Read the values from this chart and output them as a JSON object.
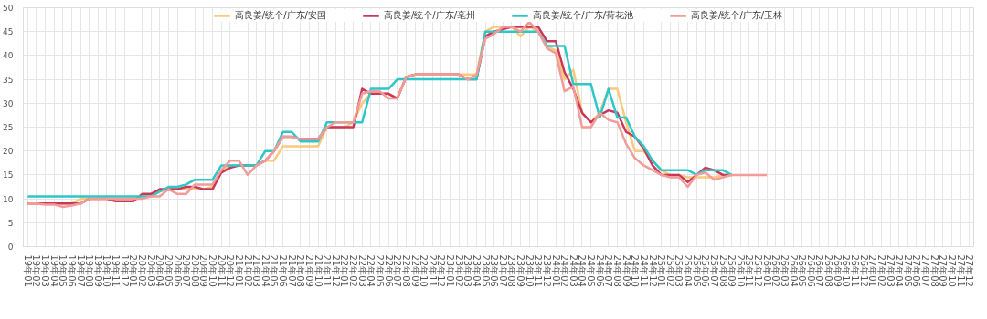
{
  "chart_data": {
    "type": "line",
    "categories": [
      "19年01",
      "19年02",
      "19年03",
      "19年04",
      "19年05",
      "19年06",
      "19年07",
      "19年08",
      "19年09",
      "19年10",
      "19年11",
      "19年12",
      "20年01",
      "20年02",
      "20年03",
      "20年04",
      "20年05",
      "20年06",
      "20年07",
      "20年08",
      "20年09",
      "20年10",
      "20年11",
      "20年12",
      "21年01",
      "21年02",
      "21年03",
      "21年04",
      "21年05",
      "21年06",
      "21年07",
      "21年08",
      "21年09",
      "21年10",
      "21年11",
      "21年12",
      "22年01",
      "22年02",
      "22年03",
      "22年04",
      "22年05",
      "22年06",
      "22年07",
      "22年08",
      "22年09",
      "22年10",
      "22年11",
      "22年12",
      "23年01",
      "23年02",
      "23年03",
      "23年04",
      "23年05",
      "23年06",
      "23年07",
      "23年08",
      "23年09",
      "23年10",
      "23年11",
      "23年12",
      "24年01",
      "24年02",
      "24年03",
      "24年04",
      "24年05",
      "24年06",
      "24年07",
      "24年08",
      "24年09",
      "24年10",
      "24年11",
      "24年12",
      "25年01",
      "25年02",
      "25年03",
      "25年04",
      "25年05",
      "25年06",
      "25年07",
      "25年08",
      "25年09",
      "25年10",
      "25年11",
      "25年12",
      "26年01",
      "26年02",
      "26年03",
      "26年04",
      "26年05",
      "26年06",
      "26年07",
      "26年08",
      "26年09",
      "26年10",
      "26年11",
      "26年12",
      "27年01",
      "27年02",
      "27年03",
      "27年04",
      "27年05",
      "27年06",
      "27年07",
      "27年08",
      "27年09",
      "27年10",
      "27年11",
      "27年12"
    ],
    "series": [
      {
        "name": "高良姜/统个/广东/安国",
        "color": "#fac97c",
        "values": [
          null,
          null,
          9,
          9,
          9,
          9,
          10,
          10,
          10,
          10,
          10,
          10,
          10,
          10.5,
          10.5,
          11.5,
          12,
          12,
          12,
          12,
          12,
          12.5,
          16,
          17,
          17,
          17,
          17,
          18,
          18,
          21,
          21,
          21,
          21,
          21,
          25,
          25,
          25,
          26,
          30,
          32,
          32,
          32,
          31,
          35.5,
          36,
          36,
          36,
          36,
          36,
          36,
          36,
          36,
          45,
          46,
          46,
          46,
          44,
          46,
          45,
          42,
          41,
          35,
          37,
          28,
          26,
          28,
          33,
          33,
          26,
          20,
          20,
          18,
          16,
          15,
          15,
          14.5,
          14.5,
          14.5,
          14.5,
          15,
          15,
          null,
          null,
          null,
          null,
          null,
          null,
          null,
          null,
          null,
          null,
          null,
          null,
          null,
          null,
          null,
          null,
          null,
          null,
          null,
          null,
          null,
          null,
          null,
          null,
          null,
          null,
          null
        ]
      },
      {
        "name": "高良姜/统个/广东/亳州",
        "color": "#c9385a",
        "values": [
          9,
          9,
          9,
          9,
          9,
          9,
          9,
          10,
          10,
          10,
          9.5,
          9.5,
          9.5,
          11,
          11,
          12,
          12,
          12,
          12.5,
          12.5,
          12,
          12,
          15.5,
          16.5,
          17,
          17,
          17,
          18,
          20,
          23,
          23,
          22.5,
          22.5,
          22.5,
          25,
          25,
          25,
          25,
          33,
          32,
          32,
          32,
          31,
          35.5,
          36,
          36,
          36,
          36,
          36,
          36,
          35,
          35,
          44,
          45,
          45.5,
          46,
          46,
          46,
          46,
          43,
          43,
          36.5,
          33,
          28,
          26,
          27.5,
          28.5,
          28,
          24,
          23,
          20.5,
          17,
          15,
          15,
          15,
          13.5,
          15,
          16.5,
          16,
          15,
          15,
          null,
          null,
          null,
          null,
          null,
          null,
          null,
          null,
          null,
          null,
          null,
          null,
          null,
          null,
          null,
          null,
          null,
          null,
          null,
          null,
          null,
          null,
          null,
          null,
          null,
          null,
          null
        ]
      },
      {
        "name": "高良姜/统个/广东/荷花池",
        "color": "#2ec7c9",
        "values": [
          10.5,
          10.5,
          10.5,
          10.5,
          10.5,
          10.5,
          10.5,
          10.5,
          10.5,
          10.5,
          10.5,
          10.5,
          10.5,
          10.5,
          10.5,
          11.5,
          12.5,
          12.5,
          13,
          14,
          14,
          14,
          17,
          17,
          17,
          17,
          17,
          20,
          20,
          24,
          24,
          22,
          22,
          22,
          26,
          26,
          26,
          26,
          26,
          33,
          33,
          33,
          35,
          35,
          35,
          35,
          35,
          35,
          35,
          35,
          35,
          35,
          45,
          45,
          45,
          45,
          45,
          45,
          45,
          42,
          42,
          42,
          34,
          34,
          34,
          27,
          33,
          27,
          27,
          23,
          21,
          18,
          16,
          16,
          16,
          16,
          15,
          16,
          16,
          16,
          15,
          null,
          null,
          null,
          null,
          null,
          null,
          null,
          null,
          null,
          null,
          null,
          null,
          null,
          null,
          null,
          null,
          null,
          null,
          null,
          null,
          null,
          null,
          null,
          null,
          null,
          null,
          null
        ]
      },
      {
        "name": "高良姜/统个/广东/玉林",
        "color": "#f29b98",
        "values": [
          9,
          9,
          8.8,
          8.8,
          8.3,
          8.6,
          9,
          10,
          10,
          10,
          10,
          10,
          10,
          10,
          10.5,
          10.5,
          12,
          11,
          11,
          13,
          13,
          13,
          16,
          18,
          18,
          15,
          17,
          18,
          20,
          23,
          23,
          22.5,
          22.5,
          22.5,
          25,
          26,
          26,
          26,
          32,
          32.5,
          32.5,
          31,
          31,
          35.5,
          36,
          36,
          36,
          36,
          36,
          36,
          35,
          36,
          43.5,
          44.5,
          46,
          46,
          45,
          47,
          45,
          41.5,
          40.5,
          32.5,
          33.5,
          25,
          25,
          28,
          26.5,
          26,
          21.5,
          18.5,
          17,
          16,
          15,
          14.5,
          14.5,
          12.5,
          15,
          15.5,
          14,
          14.5,
          15,
          15,
          15,
          15,
          15,
          null,
          null,
          null,
          null,
          null,
          null,
          null,
          null,
          null,
          null,
          null,
          null,
          null,
          null,
          null,
          null,
          null,
          null,
          null,
          null,
          null,
          null,
          null
        ]
      }
    ],
    "ylim": [
      0,
      50
    ],
    "yticks": [
      0,
      5,
      10,
      15,
      20,
      25,
      30,
      35,
      40,
      45,
      50
    ],
    "grid": true,
    "legend": "top",
    "marker": "none",
    "line_style": "solid"
  }
}
